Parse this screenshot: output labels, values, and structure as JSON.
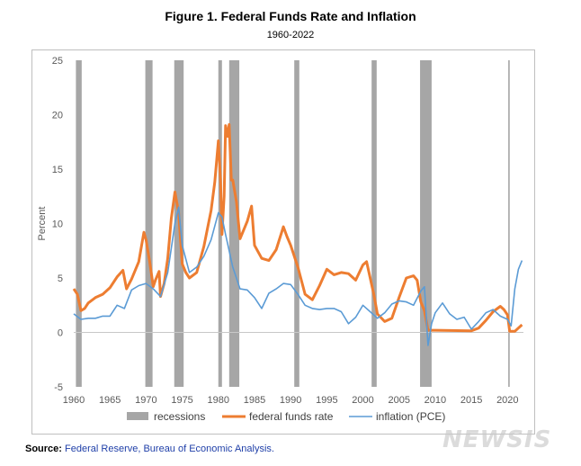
{
  "title": "Figure 1. Federal Funds Rate and Inflation",
  "subtitle": "1960-2022",
  "source_label": "Source:",
  "source_text": "Federal Reserve, Bureau of Economic Analysis.",
  "watermark": "NEWSIS",
  "chart_data": {
    "type": "line",
    "title": "Figure 1. Federal Funds Rate and Inflation",
    "subtitle": "1960-2022",
    "ylabel": "Percent",
    "xlabel": "",
    "xlim": [
      1960,
      2022.2
    ],
    "ylim": [
      -5,
      25
    ],
    "yticks": [
      -5,
      0,
      5,
      10,
      15,
      20,
      25
    ],
    "xticks": [
      1960,
      1965,
      1970,
      1975,
      1980,
      1985,
      1990,
      1995,
      2000,
      2005,
      2010,
      2015,
      2020
    ],
    "grid": false,
    "legend_position": "bottom",
    "legend": [
      "recessions",
      "federal funds rate",
      "inflation (PCE)"
    ],
    "recessions": [
      [
        1960.3,
        1961.1
      ],
      [
        1969.9,
        1970.9
      ],
      [
        1973.9,
        1975.2
      ],
      [
        1980.0,
        1980.5
      ],
      [
        1981.5,
        1982.9
      ],
      [
        1990.5,
        1991.2
      ],
      [
        2001.2,
        2001.9
      ],
      [
        2007.9,
        2009.5
      ],
      [
        2020.1,
        2020.3
      ]
    ],
    "colors": {
      "recessions": "#a6a6a6",
      "federal funds rate": "#ed7d31",
      "inflation (PCE)": "#5b9bd5"
    },
    "series": [
      {
        "name": "federal funds rate",
        "x": [
          1960,
          1960.5,
          1961,
          1961.5,
          1962,
          1963,
          1964,
          1965,
          1966,
          1966.8,
          1967.3,
          1968,
          1969,
          1969.7,
          1970,
          1970.5,
          1971,
          1971.3,
          1971.8,
          1972,
          1972.5,
          1973,
          1973.5,
          1974,
          1974.5,
          1975,
          1975.5,
          1976,
          1977,
          1978,
          1979,
          1979.5,
          1980,
          1980.3,
          1980.5,
          1980.8,
          1981,
          1981.3,
          1981.5,
          1981.8,
          1982,
          1982.5,
          1983,
          1984,
          1984.6,
          1985,
          1986,
          1987,
          1988,
          1989,
          1989.5,
          1990,
          1991,
          1992,
          1993,
          1994,
          1995,
          1996,
          1997,
          1998,
          1999,
          2000,
          2000.5,
          2001,
          2001.5,
          2002,
          2003,
          2004,
          2005,
          2006,
          2007,
          2007.5,
          2008,
          2008.5,
          2009,
          2010,
          2015,
          2016,
          2017,
          2018,
          2019,
          2019.5,
          2020,
          2020.3,
          2021,
          2022
        ],
        "values": [
          4,
          3.5,
          2,
          2.2,
          2.7,
          3.2,
          3.5,
          4.1,
          5.1,
          5.7,
          4,
          4.9,
          6.5,
          9.2,
          8.5,
          6.5,
          4.2,
          4.8,
          5.6,
          3.3,
          4.5,
          6.8,
          10.5,
          12.9,
          11,
          6.3,
          5.5,
          5,
          5.5,
          7.9,
          11.2,
          13.8,
          17.6,
          14,
          9,
          12.5,
          19,
          18,
          19.1,
          14,
          14,
          12,
          8.6,
          10.2,
          11.6,
          8,
          6.8,
          6.6,
          7.6,
          9.7,
          8.8,
          8,
          6,
          3.5,
          3,
          4.3,
          5.8,
          5.3,
          5.5,
          5.4,
          4.8,
          6.2,
          6.5,
          5,
          3.5,
          1.7,
          1,
          1.3,
          3.2,
          5,
          5.2,
          4.8,
          2.8,
          2,
          0.2,
          0.2,
          0.15,
          0.4,
          1.1,
          1.9,
          2.4,
          2.1,
          1.6,
          0.1,
          0.1,
          0.7
        ]
      },
      {
        "name": "inflation (PCE)",
        "x": [
          1960,
          1961,
          1962,
          1963,
          1964,
          1965,
          1966,
          1967,
          1968,
          1969,
          1970,
          1971,
          1972,
          1973,
          1974,
          1974.5,
          1975,
          1976,
          1977,
          1978,
          1979,
          1980,
          1980.5,
          1981,
          1982,
          1983,
          1984,
          1985,
          1986,
          1987,
          1988,
          1989,
          1990,
          1991,
          1992,
          1993,
          1994,
          1995,
          1996,
          1997,
          1998,
          1999,
          2000,
          2001,
          2002,
          2003,
          2004,
          2005,
          2006,
          2007,
          2008,
          2008.5,
          2009,
          2009.5,
          2010,
          2011,
          2012,
          2013,
          2014,
          2015,
          2016,
          2017,
          2018,
          2019,
          2020,
          2020.5,
          2021,
          2021.5,
          2022
        ],
        "values": [
          1.7,
          1.2,
          1.3,
          1.3,
          1.5,
          1.5,
          2.5,
          2.2,
          3.9,
          4.3,
          4.5,
          4,
          3.3,
          5.5,
          10,
          11.5,
          8,
          5.5,
          6,
          7,
          8.5,
          11,
          10.6,
          9,
          6,
          4,
          3.9,
          3.2,
          2.2,
          3.6,
          4,
          4.5,
          4.4,
          3.5,
          2.5,
          2.2,
          2.1,
          2.2,
          2.2,
          1.9,
          0.8,
          1.4,
          2.5,
          1.9,
          1.3,
          1.8,
          2.6,
          2.9,
          2.8,
          2.5,
          3.8,
          4.2,
          -1.2,
          0.8,
          1.8,
          2.7,
          1.7,
          1.2,
          1.4,
          0.3,
          1,
          1.8,
          2.1,
          1.5,
          1.2,
          0.6,
          4,
          5.8,
          6.6
        ]
      }
    ]
  }
}
